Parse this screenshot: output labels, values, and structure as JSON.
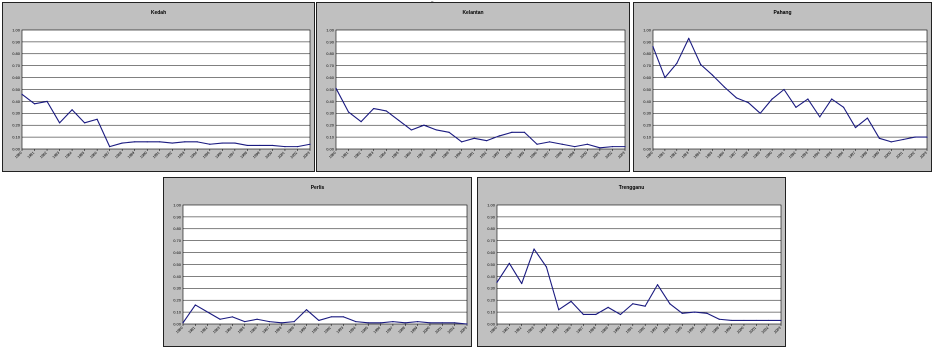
{
  "colors": {
    "panel_bg": "#c0c0c0",
    "plot_bg": "#ffffff",
    "gridline": "#000000",
    "series_line": "#1a1a80"
  },
  "chart_data": [
    {
      "type": "line",
      "title": "Kedah",
      "ylim": [
        0,
        1
      ],
      "y_ticks": [
        "0.00",
        "0.10",
        "0.20",
        "0.30",
        "0.40",
        "0.50",
        "0.60",
        "0.70",
        "0.80",
        "0.90",
        "1.00"
      ],
      "x": [
        "1980",
        "1981",
        "1982",
        "1983",
        "1984",
        "1985",
        "1986",
        "1987",
        "1988",
        "1989",
        "1990",
        "1991",
        "1992",
        "1993",
        "1994",
        "1995",
        "1996",
        "1997",
        "1998",
        "1999",
        "2000",
        "2001",
        "2002",
        "2003"
      ],
      "x_tick_labels": [
        "1980",
        "1981",
        "1982",
        "1983",
        "1984",
        "1985",
        "1986",
        "1987",
        "1988",
        "1989",
        "1990",
        "1991",
        "1992",
        "1993",
        "1994",
        "1995",
        "1996",
        "1997",
        "1998",
        "1999",
        "2000",
        "2001",
        "2002",
        "2003"
      ],
      "grid": true,
      "series": [
        {
          "values": [
            0.46,
            0.38,
            0.4,
            0.22,
            0.33,
            0.22,
            0.25,
            0.02,
            0.05,
            0.06,
            0.06,
            0.06,
            0.05,
            0.06,
            0.06,
            0.04,
            0.05,
            0.05,
            0.03,
            0.03,
            0.03,
            0.02,
            0.02,
            0.04
          ]
        }
      ]
    },
    {
      "type": "line",
      "title": "Kelantan",
      "ylim": [
        0,
        1
      ],
      "y_ticks": [
        "0.00",
        "0.10",
        "0.20",
        "0.30",
        "0.40",
        "0.50",
        "0.60",
        "0.70",
        "0.80",
        "0.90",
        "1.00"
      ],
      "x": [
        "1980",
        "1981",
        "1982",
        "1983",
        "1984",
        "1985",
        "1986",
        "1987",
        "1988",
        "1989",
        "1990",
        "1991",
        "1992",
        "1993",
        "1994",
        "1995",
        "1996",
        "1997",
        "1998",
        "1999",
        "2000",
        "2001",
        "2002",
        "2003"
      ],
      "x_tick_labels": [
        "1980",
        "1981",
        "1982",
        "1983",
        "1984",
        "1985",
        "1986",
        "1987",
        "1988",
        "1989",
        "1990",
        "1991",
        "1992",
        "1993",
        "1994",
        "1995",
        "1996",
        "1997",
        "1998",
        "1999",
        "2000",
        "2001",
        "2002",
        "2003"
      ],
      "grid": true,
      "series": [
        {
          "values": [
            0.51,
            0.31,
            0.23,
            0.34,
            0.32,
            0.24,
            0.16,
            0.2,
            0.16,
            0.14,
            0.06,
            0.09,
            0.07,
            0.11,
            0.14,
            0.14,
            0.04,
            0.06,
            0.04,
            0.02,
            0.04,
            0.01,
            0.02,
            0.02
          ]
        }
      ]
    },
    {
      "type": "line",
      "title": "Pahang",
      "ylim": [
        0,
        1
      ],
      "y_ticks": [
        "0.00",
        "0.10",
        "0.20",
        "0.30",
        "0.40",
        "0.50",
        "0.60",
        "0.70",
        "0.80",
        "0.90",
        "1.00"
      ],
      "x": [
        "1980",
        "1981",
        "1982",
        "1983",
        "1984",
        "1985",
        "1986",
        "1987",
        "1988",
        "1989",
        "1990",
        "1991",
        "1992",
        "1993",
        "1994",
        "1995",
        "1996",
        "1997",
        "1998",
        "1999",
        "2000",
        "2001",
        "2002",
        "2003"
      ],
      "x_tick_labels": [
        "1980",
        "1981",
        "1982",
        "1983",
        "1984",
        "1985",
        "1986",
        "1987",
        "1988",
        "1989",
        "1990",
        "1991",
        "1992",
        "1993",
        "1994",
        "1995",
        "1996",
        "1997",
        "1998",
        "1999",
        "2000",
        "2001",
        "2002",
        "2003"
      ],
      "grid": true,
      "series": [
        {
          "values": [
            0.86,
            0.6,
            0.72,
            0.93,
            0.71,
            0.62,
            0.52,
            0.43,
            0.39,
            0.3,
            0.42,
            0.5,
            0.35,
            0.42,
            0.27,
            0.42,
            0.35,
            0.18,
            0.26,
            0.09,
            0.06,
            0.08,
            0.1,
            0.1
          ]
        }
      ]
    },
    {
      "type": "line",
      "title": "Perlis",
      "ylim": [
        0,
        1
      ],
      "y_ticks": [
        "0.00",
        "0.10",
        "0.20",
        "0.30",
        "0.40",
        "0.50",
        "0.60",
        "0.70",
        "0.80",
        "0.90",
        "1.00"
      ],
      "x": [
        "1980",
        "1981",
        "1982",
        "1983",
        "1984",
        "1985",
        "1986",
        "1987",
        "1988",
        "1989",
        "1990",
        "1991",
        "1992",
        "1993",
        "1994",
        "1995",
        "1996",
        "1997",
        "1998",
        "1999",
        "2000",
        "2001",
        "2002",
        "2003"
      ],
      "x_tick_labels": [
        "1980",
        "1981",
        "1982",
        "1983",
        "1984",
        "1985",
        "1986",
        "1987",
        "1988",
        "1989",
        "1990",
        "1991",
        "1992",
        "1993",
        "1994",
        "1995",
        "1996",
        "1997",
        "1998",
        "1999",
        "2000",
        "2001",
        "2002",
        "2003"
      ],
      "grid": true,
      "series": [
        {
          "values": [
            0.01,
            0.16,
            0.1,
            0.04,
            0.06,
            0.02,
            0.04,
            0.02,
            0.01,
            0.02,
            0.12,
            0.03,
            0.06,
            0.06,
            0.02,
            0.01,
            0.01,
            0.02,
            0.01,
            0.02,
            0.01,
            0.01,
            0.01,
            0.0
          ]
        }
      ]
    },
    {
      "type": "line",
      "title": "Trengganu",
      "ylim": [
        0,
        1
      ],
      "y_ticks": [
        "0.00",
        "0.10",
        "0.20",
        "0.30",
        "0.40",
        "0.50",
        "0.60",
        "0.70",
        "0.80",
        "0.90",
        "1.00"
      ],
      "x": [
        "1980",
        "1981",
        "1982",
        "1983",
        "1984",
        "1985",
        "1986",
        "1987",
        "1988",
        "1989",
        "1990",
        "1991",
        "1992",
        "1993",
        "1994",
        "1995",
        "1996",
        "1997",
        "1998",
        "1999",
        "2000",
        "2001",
        "2002",
        "2003"
      ],
      "x_tick_labels": [
        "1980",
        "1981",
        "1982",
        "1983",
        "1984",
        "1985",
        "1986",
        "1987",
        "1988",
        "1989",
        "1990",
        "1991",
        "1992",
        "1993",
        "1994",
        "1995",
        "1996",
        "1997",
        "1998",
        "1999",
        "2000",
        "2001",
        "2002",
        "2003"
      ],
      "grid": true,
      "series": [
        {
          "values": [
            0.35,
            0.51,
            0.34,
            0.63,
            0.48,
            0.12,
            0.19,
            0.08,
            0.08,
            0.14,
            0.08,
            0.17,
            0.15,
            0.33,
            0.17,
            0.09,
            0.1,
            0.09,
            0.04,
            0.03,
            0.03,
            0.03,
            0.03,
            0.03
          ]
        }
      ]
    }
  ]
}
